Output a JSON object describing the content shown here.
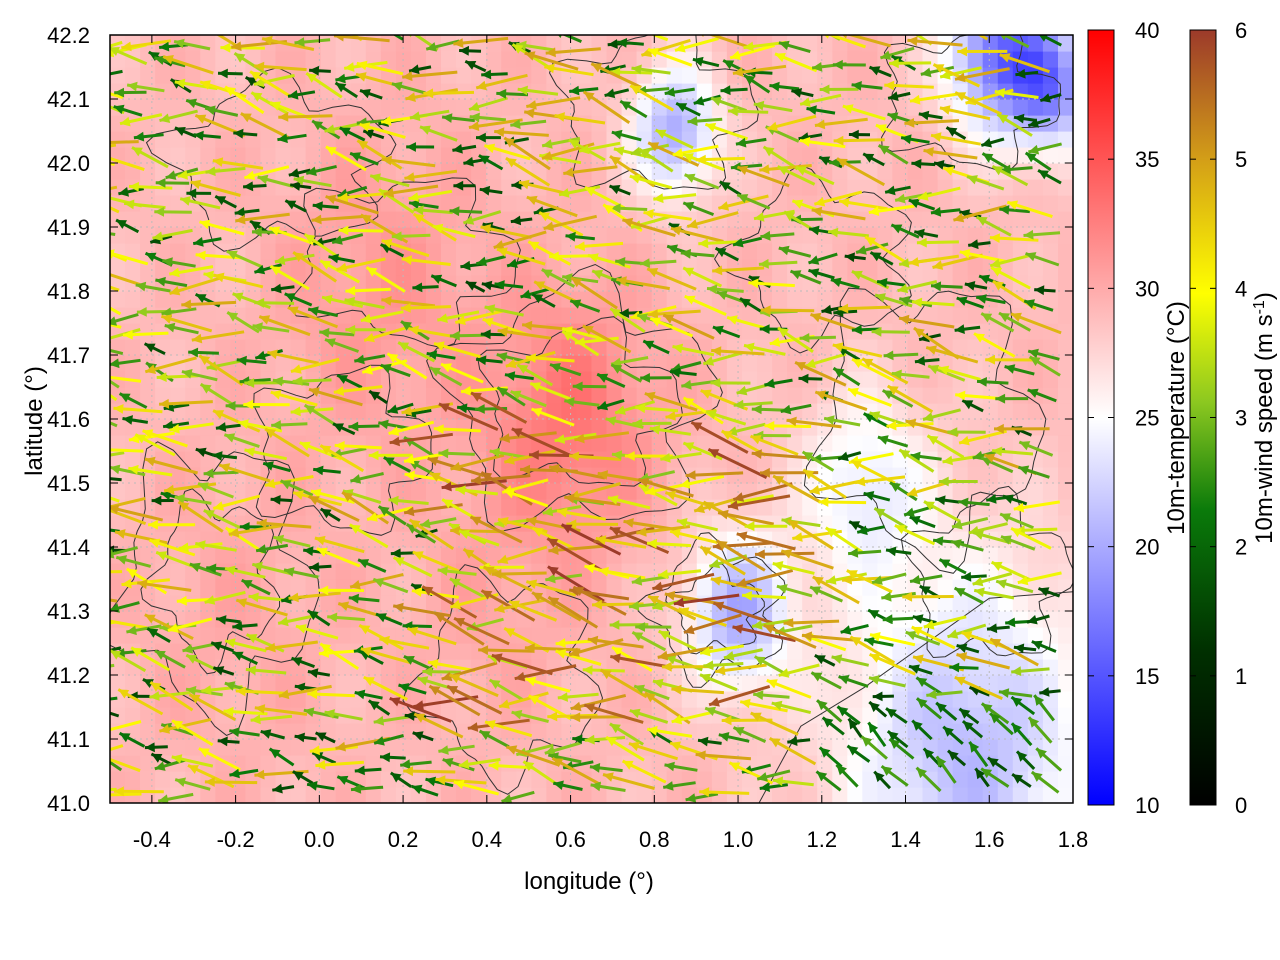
{
  "chart_data": {
    "type": "heatmap",
    "title": "",
    "xlabel": "longitude (°)",
    "ylabel": "latitude (°)",
    "xlim": [
      -0.5,
      1.8
    ],
    "ylim": [
      41.0,
      42.2
    ],
    "x_ticks": [
      "-0.4",
      "-0.2",
      "0.0",
      "0.2",
      "0.4",
      "0.6",
      "0.8",
      "1.0",
      "1.2",
      "1.4",
      "1.6",
      "1.8"
    ],
    "x_tick_values": [
      -0.4,
      -0.2,
      0.0,
      0.2,
      0.4,
      0.6,
      0.8,
      1.0,
      1.2,
      1.4,
      1.6,
      1.8
    ],
    "y_ticks": [
      "41.0",
      "41.1",
      "41.2",
      "41.3",
      "41.4",
      "41.5",
      "41.6",
      "41.7",
      "41.8",
      "41.9",
      "42.0",
      "42.1",
      "42.2"
    ],
    "y_tick_values": [
      41.0,
      41.1,
      41.2,
      41.3,
      41.4,
      41.5,
      41.6,
      41.7,
      41.8,
      41.9,
      42.0,
      42.1,
      42.2
    ],
    "grid": true,
    "layers": [
      "temperature field",
      "terrain contours",
      "wind vectors"
    ],
    "temperature_colorbar": {
      "label": "10m-temperature (°C)",
      "range": [
        10,
        40
      ],
      "ticks": [
        "10",
        "15",
        "20",
        "25",
        "30",
        "35",
        "40"
      ],
      "tick_values": [
        10,
        15,
        20,
        25,
        30,
        35,
        40
      ],
      "colors": [
        "#0000ff",
        "#ffffff",
        "#ff0000"
      ]
    },
    "wind_colorbar": {
      "label_prefix": "10m-wind speed (m s",
      "label_sup": "-1",
      "label_suffix": ")",
      "range": [
        0,
        6
      ],
      "ticks": [
        "0",
        "1",
        "2",
        "3",
        "4",
        "5",
        "6"
      ],
      "tick_values": [
        0,
        1,
        2,
        3,
        4,
        5,
        6
      ],
      "colors": [
        "#000000",
        "#006400",
        "#9acd32",
        "#ffff00",
        "#d4a017",
        "#a0522d"
      ]
    },
    "cool_regions": [
      {
        "lon": 1.62,
        "lat": 42.17,
        "temp": 17,
        "spread": 0.12
      },
      {
        "lon": 1.75,
        "lat": 42.12,
        "temp": 19,
        "spread": 0.1
      },
      {
        "lon": 0.85,
        "lat": 42.05,
        "temp": 20,
        "spread": 0.1
      },
      {
        "lon": 1.0,
        "lat": 41.3,
        "temp": 20,
        "spread": 0.12
      },
      {
        "lon": 1.55,
        "lat": 41.08,
        "temp": 21,
        "spread": 0.3
      },
      {
        "lon": 1.3,
        "lat": 41.5,
        "temp": 24,
        "spread": 0.15
      }
    ],
    "warm_regions": [
      {
        "lon": 0.6,
        "lat": 41.6,
        "temp": 33,
        "spread": 0.2
      },
      {
        "lon": 0.15,
        "lat": 41.8,
        "temp": 31,
        "spread": 0.25
      },
      {
        "lon": -0.2,
        "lat": 41.3,
        "temp": 30,
        "spread": 0.25
      },
      {
        "lon": 0.4,
        "lat": 41.3,
        "temp": 30,
        "spread": 0.2
      }
    ],
    "wind_regime": {
      "prevailing_direction": "from the east-southeast",
      "weak_wind_region": "south-east corner (lon 1.2–1.8, lat 41.0–41.15)",
      "strong_wind_region": "central band (lon 0.3–1.2, lat 41.1–41.6)"
    }
  }
}
